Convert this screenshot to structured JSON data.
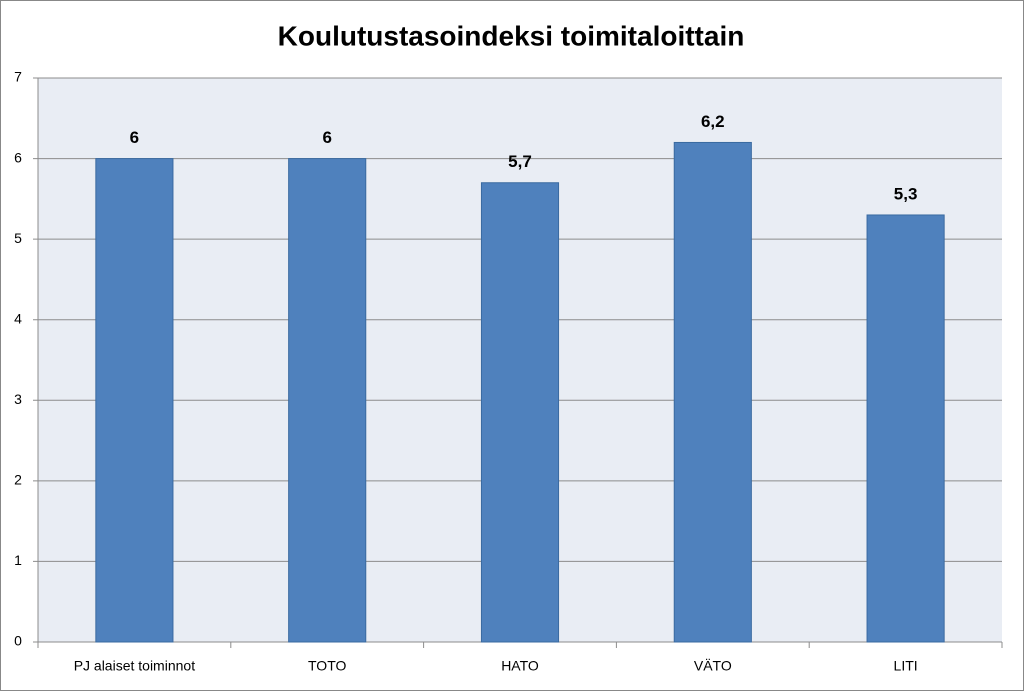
{
  "chart_data": {
    "type": "bar",
    "title": "Koulutustasoindeksi toimitaloittain",
    "categories": [
      "PJ alaiset toiminnot",
      "TOTO",
      "HATO",
      "VÄTO",
      "LITI"
    ],
    "values": [
      6,
      6,
      5.7,
      6.2,
      5.3
    ],
    "value_labels": [
      "6",
      "6",
      "5,7",
      "6,2",
      "5,3"
    ],
    "color": "#4f81bd",
    "ylim": [
      0,
      7
    ],
    "yticks": [
      0,
      1,
      2,
      3,
      4,
      5,
      6,
      7
    ],
    "grid": true
  }
}
